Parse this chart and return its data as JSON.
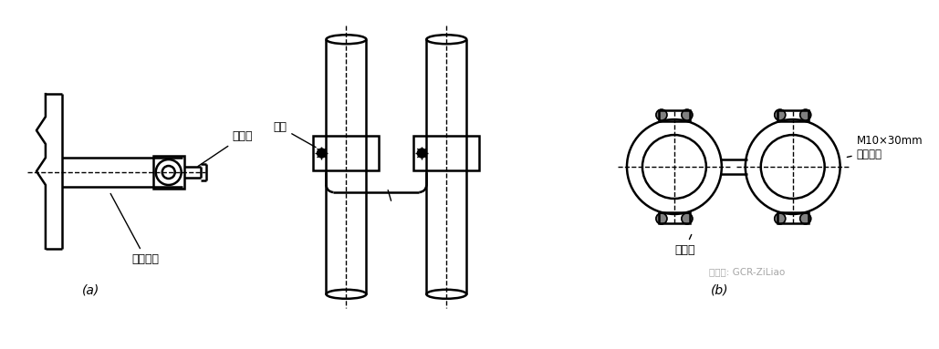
{
  "bg_color": "#ffffff",
  "line_color": "#000000",
  "title_a": "(a)",
  "title_b": "(b)",
  "label_lianjiexian": "连接线",
  "label_jinshuguandao": "金属管道",
  "label_baohuan": "抱箍",
  "label_kuajexian": "跨接线",
  "label_bolt": "M10×30mm\n镀锌螺栓",
  "watermark": "微信号: GCR-ZiLiao"
}
